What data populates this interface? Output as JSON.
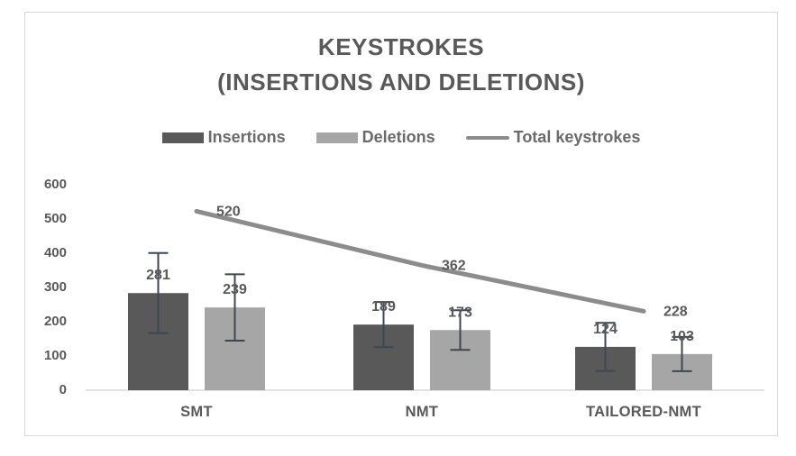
{
  "window": {
    "background": "#ffffff",
    "frame_border": "#d9d9d9"
  },
  "title": {
    "line1": "KEYSTROKES",
    "line2": "(INSERTIONS AND DELETIONS)"
  },
  "legend": [
    {
      "label": "Insertions",
      "swatch": "bar",
      "color": "#595959"
    },
    {
      "label": "Deletions",
      "swatch": "bar",
      "color": "#a6a6a6"
    },
    {
      "label": "Total keystrokes",
      "swatch": "line",
      "color": "#8c8c8c"
    }
  ],
  "chart_data": {
    "type": "bar",
    "subtype": "grouped-bars-with-line-overlay",
    "title": "KEYSTROKES (INSERTIONS AND DELETIONS)",
    "categories": [
      "SMT",
      "NMT",
      "TAILORED-NMT"
    ],
    "series": [
      {
        "name": "Insertions",
        "type": "bar",
        "color": "#595959",
        "values": [
          281,
          189,
          124
        ],
        "error_bars": [
          117,
          66,
          70
        ]
      },
      {
        "name": "Deletions",
        "type": "bar",
        "color": "#a6a6a6",
        "values": [
          239,
          173,
          103
        ],
        "error_bars": [
          97,
          58,
          50
        ]
      },
      {
        "name": "Total keystrokes",
        "type": "line",
        "color": "#8c8c8c",
        "values": [
          520,
          362,
          228
        ]
      }
    ],
    "data_labels": {
      "Insertions": [
        "281",
        "189",
        "124"
      ],
      "Deletions": [
        "239",
        "173",
        "103"
      ],
      "Total keystrokes": [
        "520",
        "362",
        "228"
      ]
    },
    "xlabel": "",
    "ylabel": "",
    "ylim": [
      0,
      600
    ],
    "yticks": [
      0,
      100,
      200,
      300,
      400,
      500,
      600
    ],
    "grid": false,
    "legend_position": "top",
    "text_color": "#595959",
    "error_bar_color": "#3f4650",
    "axis_line_color": "#d9d9d9"
  }
}
